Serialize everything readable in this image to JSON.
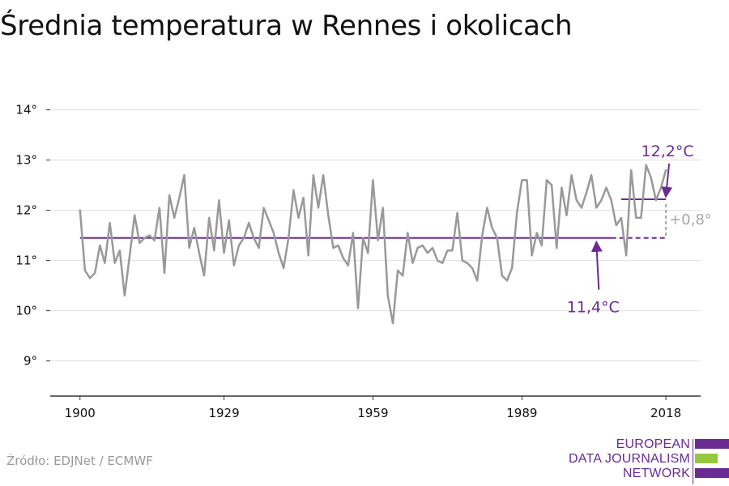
{
  "chart_data": {
    "type": "line",
    "title": "Średnia temperatura w Rennes i okolicach",
    "y_tick_labels": [
      "9°",
      "10°",
      "11°",
      "12°",
      "13°",
      "14°"
    ],
    "y_ticks": [
      9,
      10,
      11,
      12,
      13,
      14
    ],
    "x_tick_labels": [
      "1900",
      "1929",
      "1959",
      "1989",
      "2018"
    ],
    "x_ticks": [
      1900,
      1929,
      1959,
      1989,
      2018
    ],
    "ylim": [
      8.3,
      14.3
    ],
    "xlim": [
      1894,
      2025
    ],
    "grid": true,
    "series": [
      {
        "x": [
          1900,
          1901,
          1902,
          1903,
          1904,
          1905,
          1906,
          1907,
          1908,
          1909,
          1910,
          1911,
          1912,
          1913,
          1914,
          1915,
          1916,
          1917,
          1918,
          1919,
          1920,
          1921,
          1922,
          1923,
          1924,
          1925,
          1926,
          1927,
          1928,
          1929,
          1930,
          1931,
          1932,
          1933,
          1934,
          1935,
          1936,
          1937,
          1938,
          1939,
          1940,
          1941,
          1942,
          1943,
          1944,
          1945,
          1946,
          1947,
          1948,
          1949,
          1950,
          1951,
          1952,
          1953,
          1954,
          1955,
          1956,
          1957,
          1958,
          1959,
          1960,
          1961,
          1962,
          1963,
          1964,
          1965,
          1966,
          1967,
          1968,
          1969,
          1970,
          1971,
          1972,
          1973,
          1974,
          1975,
          1976,
          1977,
          1978,
          1979,
          1980,
          1981,
          1982,
          1983,
          1984,
          1985,
          1986,
          1987,
          1988,
          1989,
          1990,
          1991,
          1992,
          1993,
          1994,
          1995,
          1996,
          1997,
          1998,
          1999,
          2000,
          2001,
          2002,
          2003,
          2004,
          2005,
          2006,
          2007,
          2008,
          2009,
          2010,
          2011,
          2012,
          2013,
          2014,
          2015,
          2016,
          2017,
          2018
        ],
        "values": [
          12.0,
          10.8,
          10.65,
          10.75,
          11.3,
          10.95,
          11.75,
          10.95,
          11.2,
          10.3,
          11.1,
          11.9,
          11.35,
          11.45,
          11.5,
          11.4,
          12.05,
          10.75,
          12.3,
          11.85,
          12.25,
          12.7,
          11.25,
          11.65,
          11.15,
          10.7,
          11.85,
          11.2,
          12.2,
          11.15,
          11.8,
          10.9,
          11.3,
          11.45,
          11.75,
          11.45,
          11.25,
          12.05,
          11.8,
          11.55,
          11.15,
          10.85,
          11.45,
          12.4,
          11.85,
          12.25,
          11.1,
          12.7,
          12.05,
          12.7,
          11.9,
          11.25,
          11.3,
          11.05,
          10.9,
          11.55,
          10.05,
          11.45,
          11.15,
          12.6,
          11.4,
          12.05,
          10.3,
          9.75,
          10.8,
          10.7,
          11.55,
          10.95,
          11.25,
          11.3,
          11.15,
          11.25,
          11.0,
          10.95,
          11.2,
          11.2,
          11.95,
          11.0,
          10.95,
          10.85,
          10.6,
          11.5,
          12.05,
          11.65,
          11.45,
          10.7,
          10.6,
          10.85,
          11.95,
          12.6,
          12.6,
          11.1,
          11.55,
          11.3,
          12.6,
          12.5,
          11.25,
          12.45,
          11.9,
          12.7,
          12.2,
          12.05,
          12.35,
          12.7,
          12.05,
          12.2,
          12.45,
          12.2,
          11.7,
          11.85,
          11.1,
          12.8,
          11.85,
          11.85,
          12.9,
          12.65,
          12.2,
          12.45,
          12.8
        ]
      }
    ],
    "reference_lines": [
      {
        "label": "11,4°C",
        "value": 11.45,
        "solid_from": 1900,
        "solid_to": 2007,
        "dashed_to": 2018
      },
      {
        "label": "12,2°C",
        "value": 12.22,
        "from": 2009,
        "to": 2018
      }
    ],
    "difference_label": "+0,8°",
    "colors": {
      "series": "#999999",
      "reference": "#6a2c91",
      "difference": "#a6a6a6",
      "grid": "#e0e0e0",
      "axis": "#333333"
    }
  },
  "footer": {
    "source": "Źródło: EDJNet / ECMWF",
    "logo_lines": [
      "EUROPEAN",
      "DATA JOURNALISM",
      "NETWORK"
    ],
    "logo_colors": [
      "#6a2c91",
      "#96c83c",
      "#6a2c91"
    ]
  }
}
